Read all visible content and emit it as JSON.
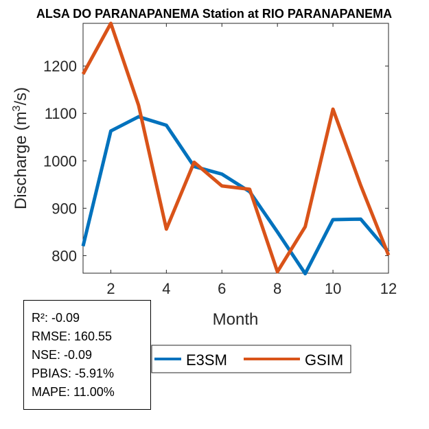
{
  "chart_data": {
    "type": "line",
    "title": "ALSA DO PARANAPANEMA  Station at  RIO PARANAPANEMA",
    "xlabel": "Month",
    "ylabel": "Discharge (m3/s)",
    "ylabel_base": "Discharge (m",
    "ylabel_sup": "3",
    "ylabel_tail": "/s)",
    "xlim": [
      1,
      12
    ],
    "ylim": [
      763,
      1290
    ],
    "xticks": [
      2,
      4,
      6,
      8,
      10,
      12
    ],
    "yticks": [
      800,
      900,
      1000,
      1100,
      1200
    ],
    "x": [
      1,
      2,
      3,
      4,
      5,
      6,
      7,
      8,
      9,
      10,
      11,
      12
    ],
    "series": [
      {
        "name": "E3SM",
        "color": "#0072BD",
        "values": [
          820,
          1063,
          1093,
          1075,
          988,
          972,
          935,
          850,
          762,
          876,
          877,
          808
        ]
      },
      {
        "name": "GSIM",
        "color": "#D95319",
        "values": [
          1183,
          1290,
          1117,
          856,
          997,
          947,
          940,
          766,
          861,
          1109,
          948,
          801
        ]
      }
    ]
  },
  "stats": {
    "r2": "R²: -0.09",
    "rmse": "RMSE: 160.55",
    "nse": "NSE: -0.09",
    "pbias": "PBIAS: -5.91%",
    "mape": "MAPE: 11.00%"
  }
}
